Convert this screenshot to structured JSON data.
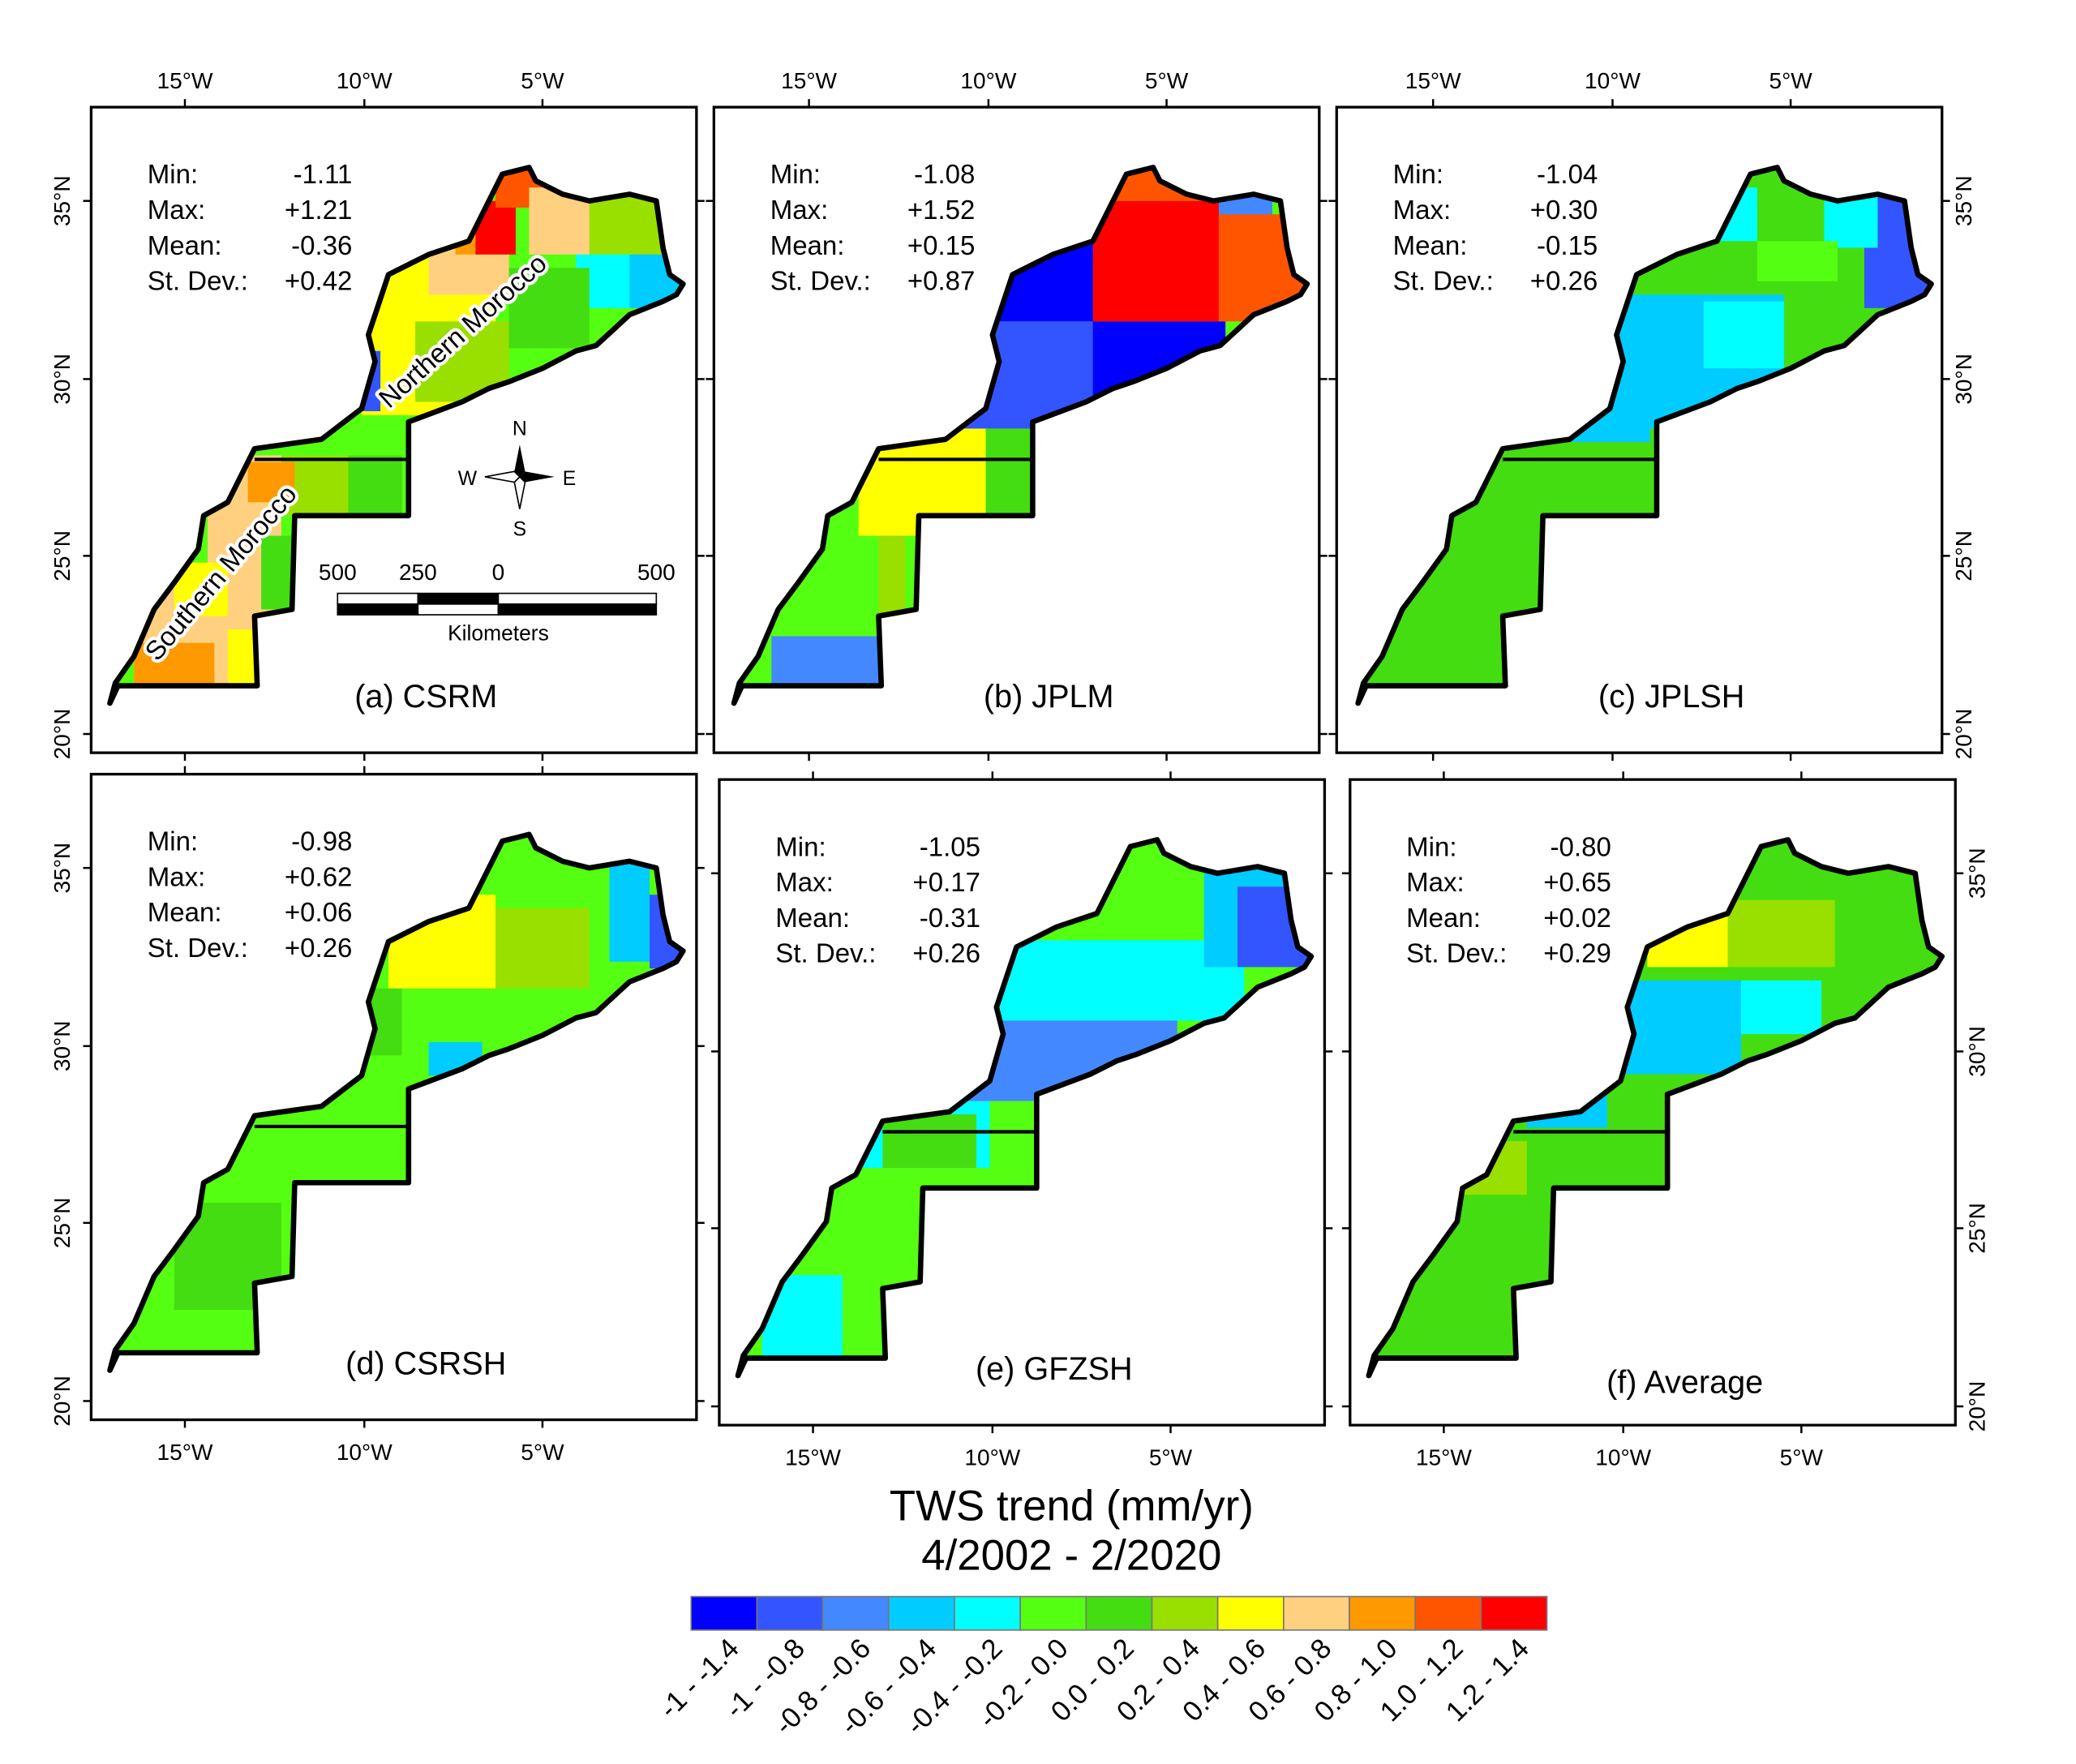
{
  "chart_data": {
    "type": "heatmap",
    "title": "TWS trend (mm/yr)",
    "subtitle": "4/2002 - 2/2020",
    "legend": {
      "placement": "bottom",
      "bins": [
        "-1 - -1.4",
        "-1 - -0.8",
        "-0.8 - -0.6",
        "-0.6 - -0.4",
        "-0.4 - -0.2",
        "-0.2 - 0.0",
        "0.0 - 0.2",
        "0.2 - 0.4",
        "0.4 - 0.6",
        "0.6 - 0.8",
        "0.8 - 1.0",
        "1.0 - 1.2",
        "1.2 - 1.4"
      ],
      "colors": [
        "#0000ff",
        "#3355ff",
        "#4488ff",
        "#00ccff",
        "#00ffff",
        "#55ff11",
        "#44dd11",
        "#99e000",
        "#ffff00",
        "#ffd080",
        "#ff9900",
        "#ff5500",
        "#ff0000"
      ]
    },
    "lon_ticks": [
      "15°W",
      "10°W",
      "5°W"
    ],
    "lat_ticks": [
      "35°N",
      "30°N",
      "25°N",
      "20°N"
    ],
    "stat_labels": [
      "Min:",
      "Max:",
      "Mean:",
      "St. Dev.:"
    ],
    "panels": [
      {
        "title": "(a) CSRM",
        "min": "-1.11",
        "max": "+1.21",
        "mean": "-0.36",
        "sd": "+0.42"
      },
      {
        "title": "(b) JPLM",
        "min": "-1.08",
        "max": "+1.52",
        "mean": "+0.15",
        "sd": "+0.87"
      },
      {
        "title": "(c) JPLSH",
        "min": "-1.04",
        "max": "+0.30",
        "mean": "-0.15",
        "sd": "+0.26"
      },
      {
        "title": "(d) CSRSH",
        "min": "-0.98",
        "max": "+0.62",
        "mean": "+0.06",
        "sd": "+0.26"
      },
      {
        "title": "(e) GFZSH",
        "min": "-1.05",
        "max": "+0.17",
        "mean": "-0.31",
        "sd": "+0.26"
      },
      {
        "title": "(f) Average",
        "min": "-0.80",
        "max": "+0.65",
        "mean": "+0.02",
        "sd": "+0.29"
      }
    ],
    "annotations": {
      "northern": "Northern Morocco",
      "southern": "Southern Morocco",
      "compass": {
        "n": "N",
        "s": "S",
        "e": "E",
        "w": "W"
      },
      "scale_labels": [
        "500",
        "250",
        "0",
        "500"
      ],
      "scale_unit": "Kilometers"
    }
  }
}
